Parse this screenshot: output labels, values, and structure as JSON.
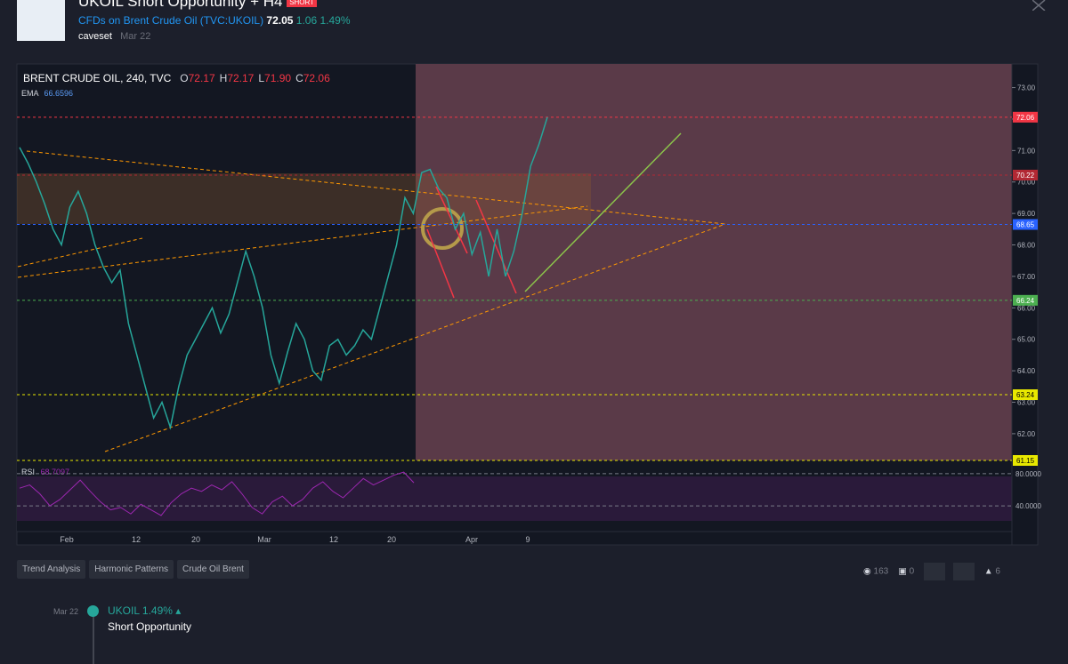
{
  "header": {
    "title": "UKOIL Short Opportunity + H4",
    "badge": "SHORT",
    "symbol_name": "CFDs on Brent Crude Oil",
    "symbol": "(TVC:UKOIL)",
    "price": "72.05",
    "change": "1.06",
    "change_pct": "1.49%",
    "author": "caveset",
    "date": "Mar 22"
  },
  "chart": {
    "legend": "BRENT CRUDE OIL, 240, TVC",
    "ohlc": [
      {
        "key": "O",
        "value": "72.17"
      },
      {
        "key": "H",
        "value": "72.17"
      },
      {
        "key": "L",
        "value": "71.90"
      },
      {
        "key": "C",
        "value": "72.06"
      }
    ],
    "ema_label": "EMA",
    "ema_value": "66.6596",
    "rsi_label": "RSI",
    "rsi_value": "68.7097",
    "ylim": [
      61.15,
      73.75
    ],
    "yticks": [
      {
        "value": 73,
        "label": "73.00"
      },
      {
        "value": 72,
        "label": "72.00"
      },
      {
        "value": 71,
        "label": "71.00"
      },
      {
        "value": 70,
        "label": "70.00"
      },
      {
        "value": 69,
        "label": "69.00"
      },
      {
        "value": 68,
        "label": "68.00"
      },
      {
        "value": 67,
        "label": "67.00"
      },
      {
        "value": 66,
        "label": "66.00"
      },
      {
        "value": 65,
        "label": "65.00"
      },
      {
        "value": 64,
        "label": "64.00"
      },
      {
        "value": 63,
        "label": "63.00"
      },
      {
        "value": 62,
        "label": "62.00"
      }
    ],
    "levels": [
      {
        "value": 72.06,
        "color": "#f23645"
      },
      {
        "value": 70.22,
        "color": "#b22833"
      },
      {
        "value": 68.65,
        "color": "#2962ff"
      },
      {
        "value": 66.24,
        "color": "#4caf50"
      },
      {
        "value": 63.24,
        "color": "#e8e800"
      },
      {
        "value": 61.15,
        "color": "#e8e800"
      }
    ],
    "close": [
      71.1,
      70.6,
      70.0,
      69.3,
      68.5,
      68.0,
      69.2,
      69.7,
      69.0,
      68.0,
      67.3,
      66.8,
      67.2,
      65.5,
      64.5,
      63.5,
      62.5,
      63.0,
      62.2,
      63.5,
      64.5,
      65.0,
      65.5,
      66.0,
      65.2,
      65.8,
      66.8,
      67.8,
      67.0,
      66.0,
      64.5,
      63.6,
      64.6,
      65.5,
      65.0,
      64.0,
      63.7,
      64.8,
      65.0,
      64.5,
      64.8,
      65.3,
      65.0,
      66.0,
      67.0,
      68.0,
      69.5,
      69.0,
      70.3,
      70.4,
      69.8,
      69.5,
      68.5,
      69.0,
      67.7,
      68.4,
      67.0,
      68.5,
      67.0,
      67.8,
      69.0,
      70.5,
      71.2,
      72.06
    ],
    "rsi_ylim": [
      8,
      96.5
    ],
    "rsi_ticks": [
      {
        "value": 80,
        "label": "80.0000"
      },
      {
        "value": 40,
        "label": "40.0000"
      }
    ],
    "rsi": [
      62,
      66,
      55,
      40,
      48,
      60,
      72,
      58,
      45,
      35,
      38,
      30,
      42,
      35,
      28,
      44,
      55,
      62,
      58,
      66,
      60,
      70,
      55,
      38,
      30,
      45,
      52,
      40,
      48,
      62,
      70,
      58,
      50,
      62,
      74,
      66,
      72,
      78,
      82,
      68.7
    ],
    "xlabels": [
      "Feb",
      "12",
      "20",
      "Mar",
      "12",
      "20",
      "Apr",
      "9"
    ]
  },
  "tags": [
    "Trend Analysis",
    "Harmonic Patterns",
    "Crude Oil Brent"
  ],
  "stats": {
    "views": "163",
    "comments": "0",
    "likes": "6"
  },
  "timeline": {
    "date": "Mar 22",
    "symbol": "UKOIL",
    "change": "1.49%",
    "text": "Short Opportunity"
  }
}
